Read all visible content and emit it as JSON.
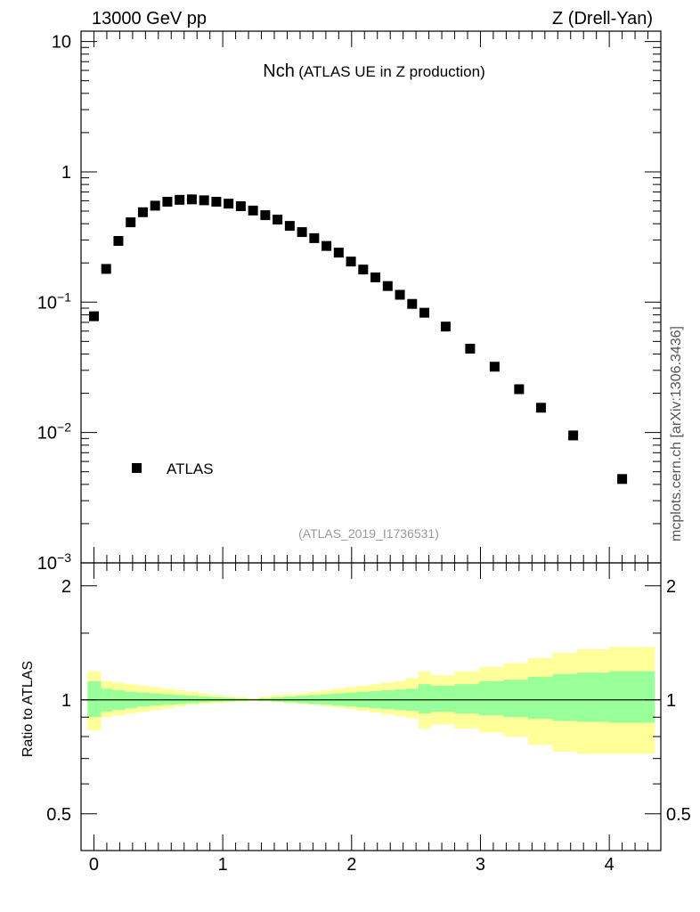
{
  "header": {
    "left": "13000 GeV pp",
    "right": "Z (Drell-Yan)"
  },
  "plot": {
    "title_main": "Nch",
    "title_sub": "(ATLAS UE in Z production)",
    "reference": "(ATLAS_2019_I1736531)",
    "side_label": "mcplots.cern.ch [arXiv:1306.3436]",
    "ratio_ylabel": "Ratio to ATLAS"
  },
  "legend": {
    "entries": [
      {
        "label": "ATLAS",
        "marker": "square",
        "color": "#000000"
      }
    ]
  },
  "colors": {
    "marker": "#000000",
    "band_outer": "#ffff99",
    "band_inner": "#99ff99"
  },
  "chart_data": [
    {
      "type": "scatter",
      "yscale": "log",
      "ylim": [
        0.001,
        12
      ],
      "xlim": [
        -0.1,
        4.4
      ],
      "ytick_labels": [
        "10^-3",
        "10^-2",
        "10^-1",
        "1",
        "10"
      ],
      "ytick_values": [
        0.001,
        0.01,
        0.1,
        1,
        10
      ],
      "series": [
        {
          "name": "ATLAS",
          "x": [
            0.0,
            0.095,
            0.19,
            0.285,
            0.38,
            0.475,
            0.57,
            0.665,
            0.76,
            0.855,
            0.95,
            1.045,
            1.14,
            1.235,
            1.33,
            1.425,
            1.52,
            1.615,
            1.71,
            1.805,
            1.9,
            1.995,
            2.09,
            2.185,
            2.28,
            2.375,
            2.47,
            2.565,
            2.73,
            2.92,
            3.11,
            3.3,
            3.47,
            3.72,
            4.1
          ],
          "y": [
            0.078,
            0.18,
            0.295,
            0.41,
            0.49,
            0.55,
            0.59,
            0.61,
            0.615,
            0.605,
            0.59,
            0.57,
            0.545,
            0.505,
            0.465,
            0.43,
            0.385,
            0.345,
            0.31,
            0.27,
            0.24,
            0.205,
            0.178,
            0.155,
            0.133,
            0.114,
            0.097,
            0.083,
            0.065,
            0.044,
            0.032,
            0.0215,
            0.0155,
            0.0095,
            0.0044
          ]
        }
      ]
    },
    {
      "type": "area",
      "xlim": [
        -0.1,
        4.4
      ],
      "ylim": [
        0.4,
        2.3
      ],
      "xtick_labels": [
        "0",
        "1",
        "2",
        "3",
        "4"
      ],
      "xtick_values": [
        0,
        1,
        2,
        3,
        4
      ],
      "ytick_labels": [
        "0.5",
        "1",
        "2"
      ],
      "ytick_values": [
        0.5,
        1,
        2
      ],
      "ylabel": "Ratio to ATLAS",
      "reference_line": 1,
      "bin_edges": [
        -0.05,
        0.05,
        0.14,
        0.24,
        0.33,
        0.43,
        0.52,
        0.62,
        0.71,
        0.81,
        0.9,
        1.0,
        1.09,
        1.19,
        1.28,
        1.38,
        1.47,
        1.57,
        1.66,
        1.76,
        1.85,
        1.95,
        2.04,
        2.14,
        2.23,
        2.33,
        2.42,
        2.52,
        2.61,
        2.8,
        2.99,
        3.18,
        3.37,
        3.56,
        3.75,
        4.0,
        4.35
      ],
      "series": [
        {
          "name": "total uncertainty",
          "lower": [
            0.83,
            0.9,
            0.91,
            0.92,
            0.93,
            0.94,
            0.95,
            0.96,
            0.97,
            0.975,
            0.98,
            0.985,
            0.99,
            0.995,
            0.99,
            0.985,
            0.98,
            0.975,
            0.97,
            0.96,
            0.955,
            0.945,
            0.935,
            0.925,
            0.915,
            0.905,
            0.895,
            0.84,
            0.86,
            0.84,
            0.82,
            0.8,
            0.76,
            0.73,
            0.72,
            0.72
          ],
          "upper": [
            1.19,
            1.12,
            1.11,
            1.1,
            1.09,
            1.08,
            1.07,
            1.06,
            1.05,
            1.04,
            1.03,
            1.02,
            1.015,
            1.01,
            1.02,
            1.03,
            1.035,
            1.04,
            1.05,
            1.06,
            1.07,
            1.08,
            1.09,
            1.1,
            1.11,
            1.12,
            1.14,
            1.19,
            1.16,
            1.19,
            1.22,
            1.25,
            1.29,
            1.33,
            1.36,
            1.38
          ]
        },
        {
          "name": "stat uncertainty",
          "lower": [
            0.9,
            0.93,
            0.94,
            0.95,
            0.96,
            0.965,
            0.97,
            0.975,
            0.98,
            0.985,
            0.99,
            0.992,
            0.995,
            0.998,
            0.995,
            0.99,
            0.985,
            0.98,
            0.975,
            0.97,
            0.965,
            0.96,
            0.955,
            0.95,
            0.945,
            0.94,
            0.935,
            0.92,
            0.93,
            0.92,
            0.91,
            0.9,
            0.89,
            0.88,
            0.875,
            0.87
          ],
          "upper": [
            1.12,
            1.07,
            1.06,
            1.05,
            1.045,
            1.04,
            1.035,
            1.03,
            1.025,
            1.02,
            1.015,
            1.012,
            1.008,
            1.005,
            1.01,
            1.015,
            1.02,
            1.025,
            1.03,
            1.035,
            1.04,
            1.045,
            1.05,
            1.055,
            1.06,
            1.065,
            1.07,
            1.1,
            1.09,
            1.1,
            1.12,
            1.13,
            1.15,
            1.17,
            1.18,
            1.19
          ]
        }
      ]
    }
  ]
}
